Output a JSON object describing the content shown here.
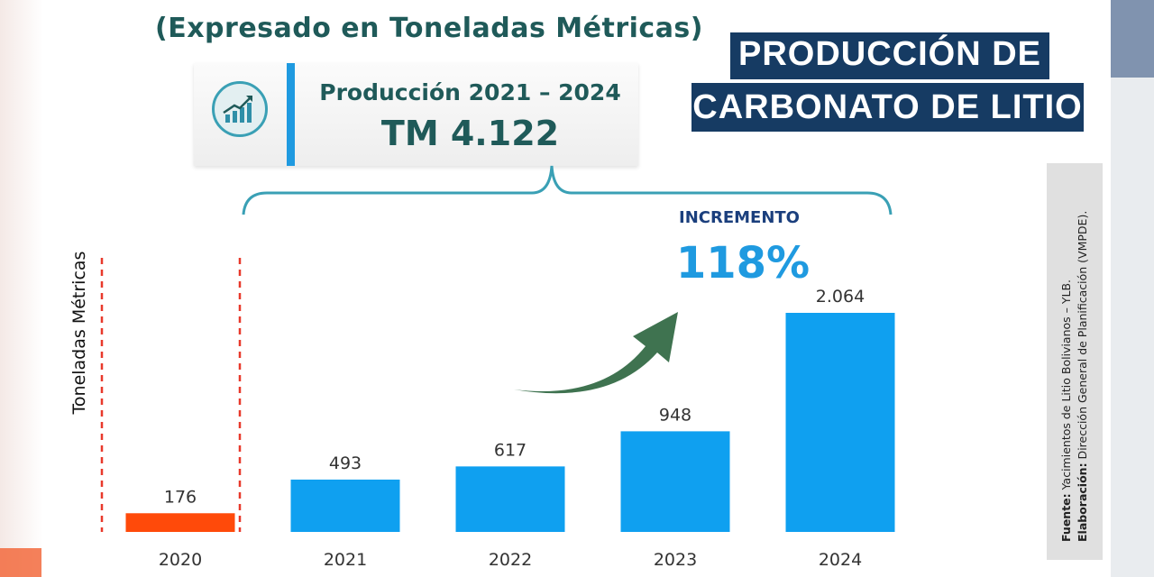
{
  "header": {
    "subtitle": "(Expresado en Toneladas Métricas)",
    "title_line1": "PRODUCCIÓN DE",
    "title_line2": "CARBONATO DE LITIO"
  },
  "summary": {
    "icon": "growth-chart-icon",
    "label": "Producción 2021 – 2024",
    "value": "TM 4.122"
  },
  "increment": {
    "label": "INCREMENTO",
    "value": "118%"
  },
  "source": {
    "fuente_label": "Fuente:",
    "fuente_text": "Yacimientos de Litio Bolivianos – YLB.",
    "elaboracion_label": "Elaboración:",
    "elaboracion_text": "Dirección General de Planificación (VMPDE)."
  },
  "colors": {
    "bar_2020": "#ff4a0a",
    "bar_other": "#0fa0f0",
    "title_bg": "#163b63",
    "accent_blue": "#1f9ae0",
    "arrow_green": "#3f7350",
    "dashed_red": "#e8392b"
  },
  "chart_data": {
    "type": "bar",
    "categories": [
      "2020",
      "2021",
      "2022",
      "2023",
      "2024"
    ],
    "values": [
      176,
      493,
      617,
      948,
      2064
    ],
    "data_labels": [
      "176",
      "493",
      "617",
      "948",
      "2.064"
    ],
    "title": "PRODUCCIÓN DE CARBONATO DE LITIO",
    "subtitle": "(Expresado en Toneladas Métricas)",
    "xlabel": "",
    "ylabel": "Toneladas Métricas",
    "ylim": [
      0,
      2064
    ],
    "grid": false,
    "legend": "none",
    "highlight": {
      "category": "2020",
      "color": "#ff4a0a"
    }
  }
}
